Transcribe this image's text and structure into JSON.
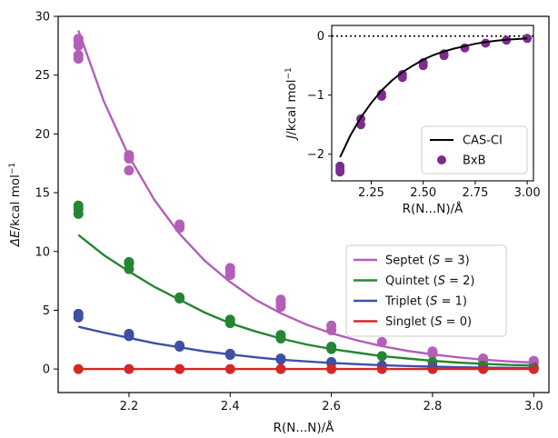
{
  "chart_data": [
    {
      "type": "scatter",
      "xlabel": "R(N...N)/Å",
      "ylabel": "ΔE/kcal mol⁻¹",
      "xlim": [
        2.06,
        3.03
      ],
      "ylim": [
        -2,
        30
      ],
      "xticks": [
        2.2,
        2.4,
        2.6,
        2.8,
        3.0
      ],
      "yticks": [
        0,
        5,
        10,
        15,
        20,
        25,
        30
      ],
      "grid": false,
      "legend_position": "right",
      "series": [
        {
          "name": "Septet (S = 3)",
          "color": "#b35fb9",
          "fit_x": [
            2.1,
            2.15,
            2.2,
            2.25,
            2.3,
            2.35,
            2.4,
            2.45,
            2.5,
            2.55,
            2.6,
            2.65,
            2.7,
            2.75,
            2.8,
            2.85,
            2.9,
            2.95,
            3.0
          ],
          "fit_y": [
            28.8,
            22.8,
            18.1,
            14.4,
            11.5,
            9.2,
            7.4,
            5.9,
            4.75,
            3.8,
            3.05,
            2.45,
            1.95,
            1.55,
            1.25,
            1.0,
            0.8,
            0.65,
            0.55
          ],
          "points": [
            [
              2.1,
              26.4
            ],
            [
              2.1,
              26.7
            ],
            [
              2.1,
              27.5
            ],
            [
              2.1,
              27.9
            ],
            [
              2.1,
              28.1
            ],
            [
              2.2,
              16.9
            ],
            [
              2.2,
              17.9
            ],
            [
              2.2,
              18.1
            ],
            [
              2.2,
              18.2
            ],
            [
              2.3,
              12.0
            ],
            [
              2.3,
              12.3
            ],
            [
              2.4,
              8.0
            ],
            [
              2.4,
              8.3
            ],
            [
              2.4,
              8.6
            ],
            [
              2.5,
              5.3
            ],
            [
              2.5,
              5.6
            ],
            [
              2.5,
              5.9
            ],
            [
              2.6,
              3.3
            ],
            [
              2.6,
              3.7
            ],
            [
              2.7,
              2.3
            ],
            [
              2.8,
              1.3
            ],
            [
              2.8,
              1.5
            ],
            [
              2.9,
              0.7
            ],
            [
              2.9,
              0.9
            ],
            [
              3.0,
              0.5
            ],
            [
              3.0,
              0.7
            ]
          ]
        },
        {
          "name": "Quintet (S = 2)",
          "color": "#268534",
          "fit_x": [
            2.1,
            2.15,
            2.2,
            2.25,
            2.3,
            2.35,
            2.4,
            2.45,
            2.5,
            2.55,
            2.6,
            2.65,
            2.7,
            2.75,
            2.8,
            2.85,
            2.9,
            2.95,
            3.0
          ],
          "fit_y": [
            11.4,
            9.7,
            8.3,
            7.0,
            5.9,
            4.8,
            3.9,
            3.2,
            2.6,
            2.1,
            1.7,
            1.4,
            1.1,
            0.9,
            0.7,
            0.55,
            0.45,
            0.35,
            0.3
          ],
          "points": [
            [
              2.1,
              13.2
            ],
            [
              2.1,
              13.6
            ],
            [
              2.1,
              13.9
            ],
            [
              2.2,
              8.5
            ],
            [
              2.2,
              9.0
            ],
            [
              2.2,
              9.1
            ],
            [
              2.3,
              6.0
            ],
            [
              2.3,
              6.1
            ],
            [
              2.4,
              3.9
            ],
            [
              2.4,
              4.2
            ],
            [
              2.5,
              2.6
            ],
            [
              2.5,
              2.9
            ],
            [
              2.6,
              1.7
            ],
            [
              2.6,
              1.9
            ],
            [
              2.7,
              1.1
            ],
            [
              2.8,
              0.6
            ],
            [
              2.9,
              0.3
            ],
            [
              3.0,
              0.15
            ]
          ]
        },
        {
          "name": "Triplet (S = 1)",
          "color": "#3f4fa6",
          "fit_x": [
            2.1,
            2.15,
            2.2,
            2.25,
            2.3,
            2.35,
            2.4,
            2.45,
            2.5,
            2.55,
            2.6,
            2.65,
            2.7,
            2.75,
            2.8,
            2.85,
            2.9,
            2.95,
            3.0
          ],
          "fit_y": [
            3.6,
            3.1,
            2.65,
            2.2,
            1.85,
            1.5,
            1.25,
            1.0,
            0.8,
            0.65,
            0.52,
            0.42,
            0.33,
            0.26,
            0.2,
            0.16,
            0.12,
            0.1,
            0.08
          ],
          "points": [
            [
              2.1,
              4.4
            ],
            [
              2.1,
              4.7
            ],
            [
              2.2,
              2.8
            ],
            [
              2.2,
              3.0
            ],
            [
              2.3,
              1.9
            ],
            [
              2.3,
              2.0
            ],
            [
              2.4,
              1.2
            ],
            [
              2.4,
              1.3
            ],
            [
              2.5,
              0.8
            ],
            [
              2.5,
              0.9
            ],
            [
              2.6,
              0.5
            ],
            [
              2.6,
              0.6
            ],
            [
              2.7,
              0.3
            ],
            [
              2.8,
              0.2
            ],
            [
              2.9,
              0.1
            ],
            [
              3.0,
              0.05
            ]
          ]
        },
        {
          "name": "Singlet (S = 0)",
          "color": "#d62728",
          "fit_x": [
            2.1,
            3.0
          ],
          "fit_y": [
            0.0,
            0.0
          ],
          "points": [
            [
              2.1,
              0.0
            ],
            [
              2.2,
              0.0
            ],
            [
              2.3,
              0.0
            ],
            [
              2.4,
              0.0
            ],
            [
              2.5,
              0.0
            ],
            [
              2.6,
              0.0
            ],
            [
              2.7,
              0.0
            ],
            [
              2.8,
              0.0
            ],
            [
              2.9,
              0.0
            ],
            [
              3.0,
              0.0
            ]
          ]
        }
      ]
    },
    {
      "type": "scatter",
      "inset": true,
      "xlabel": "R(N...N)/Å",
      "ylabel": "J/kcal mol⁻¹",
      "xlim": [
        2.06,
        3.03
      ],
      "ylim": [
        -2.45,
        0.18
      ],
      "xticks": [
        2.25,
        2.5,
        2.75,
        3.0
      ],
      "xtick_labels": [
        "2.25",
        "2.50",
        "2.75",
        "3.00"
      ],
      "yticks": [
        -2,
        -1,
        0
      ],
      "reference_line": {
        "y": 0,
        "style": "dotted"
      },
      "legend_position": "lower-right",
      "series": [
        {
          "name": "CAS-CI",
          "color": "#000000",
          "fit_x": [
            2.1,
            2.15,
            2.2,
            2.25,
            2.3,
            2.35,
            2.4,
            2.45,
            2.5,
            2.55,
            2.6,
            2.65,
            2.7,
            2.75,
            2.8,
            2.85,
            2.9,
            2.95,
            3.0
          ],
          "fit_y": [
            -2.05,
            -1.68,
            -1.38,
            -1.13,
            -0.92,
            -0.75,
            -0.61,
            -0.5,
            -0.4,
            -0.32,
            -0.26,
            -0.21,
            -0.17,
            -0.13,
            -0.1,
            -0.08,
            -0.06,
            -0.05,
            -0.04
          ]
        },
        {
          "name": "BxB",
          "color": "#7b2d8e",
          "points": [
            [
              2.1,
              -2.2
            ],
            [
              2.1,
              -2.25
            ],
            [
              2.1,
              -2.3
            ],
            [
              2.2,
              -1.4
            ],
            [
              2.2,
              -1.5
            ],
            [
              2.3,
              -0.98
            ],
            [
              2.3,
              -1.02
            ],
            [
              2.4,
              -0.65
            ],
            [
              2.4,
              -0.7
            ],
            [
              2.5,
              -0.45
            ],
            [
              2.5,
              -0.5
            ],
            [
              2.6,
              -0.3
            ],
            [
              2.6,
              -0.33
            ],
            [
              2.7,
              -0.2
            ],
            [
              2.8,
              -0.12
            ],
            [
              2.9,
              -0.07
            ],
            [
              3.0,
              -0.04
            ]
          ]
        }
      ]
    }
  ]
}
